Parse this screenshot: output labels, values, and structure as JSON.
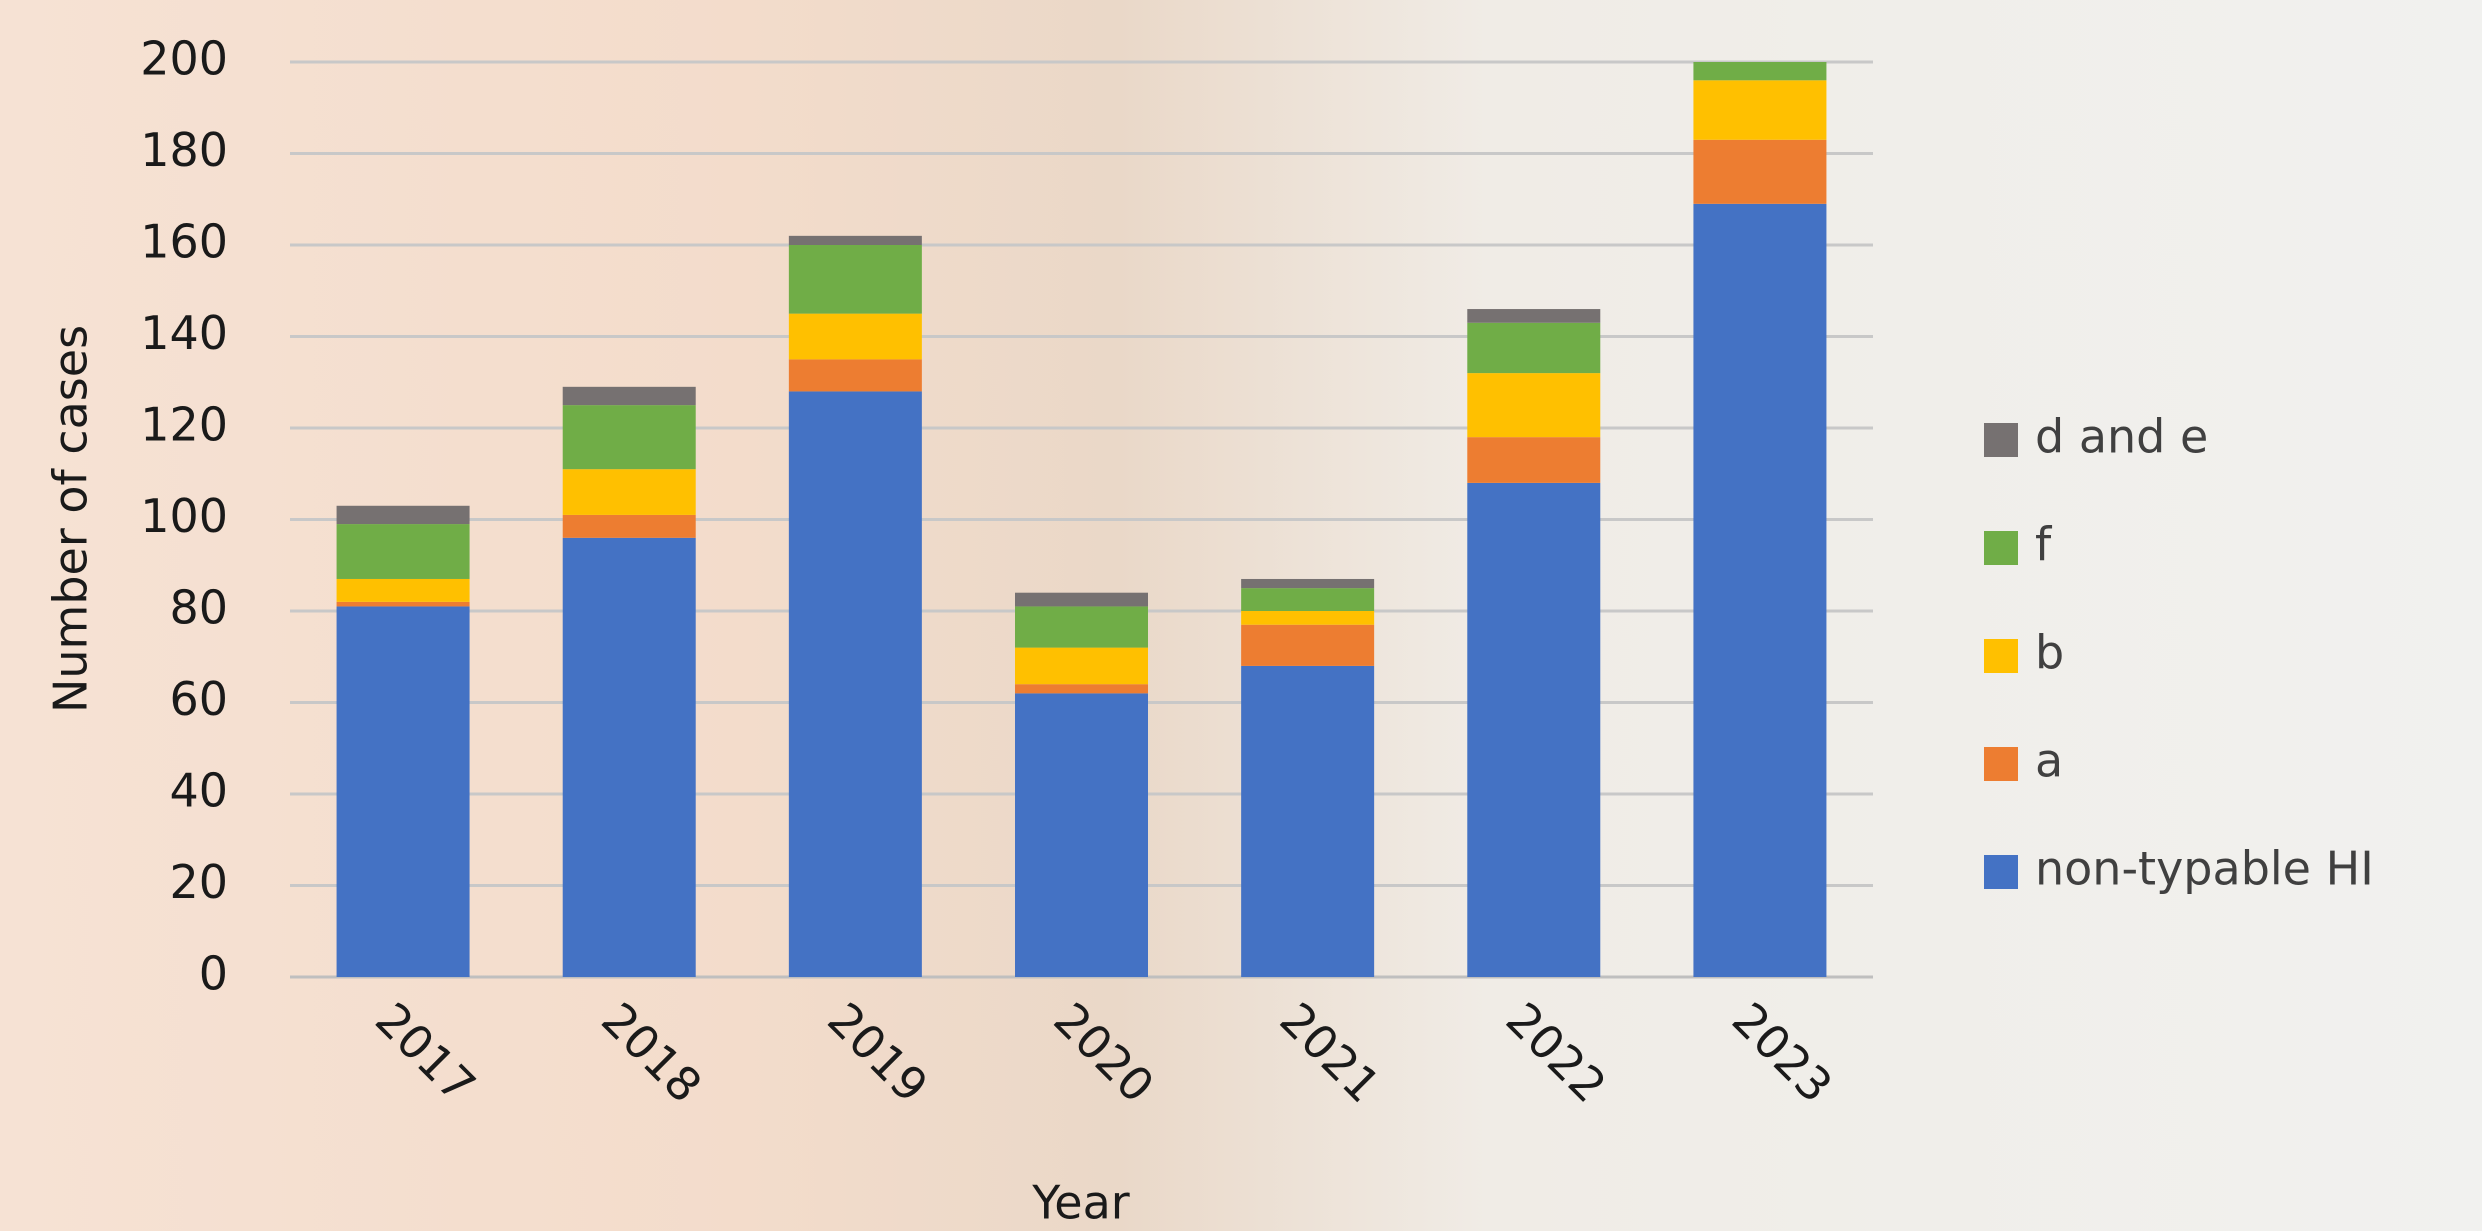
{
  "chart_data": {
    "type": "stacked_bar",
    "x_label": "Year",
    "y_label": "Number of cases",
    "categories": [
      "2017",
      "2018",
      "2019",
      "2020",
      "2021",
      "2022",
      "2023"
    ],
    "series": [
      {
        "name": "non-typable HI",
        "color": "#4472c4",
        "values": [
          81,
          96,
          128,
          62,
          68,
          108,
          169
        ]
      },
      {
        "name": "a",
        "color": "#ed7d31",
        "values": [
          1,
          5,
          7,
          2,
          9,
          10,
          14
        ]
      },
      {
        "name": "b",
        "color": "#ffc000",
        "values": [
          5,
          10,
          10,
          8,
          3,
          14,
          13
        ]
      },
      {
        "name": "f",
        "color": "#70ad47",
        "values": [
          12,
          14,
          15,
          9,
          5,
          11,
          4
        ]
      },
      {
        "name": "d and e",
        "color": "#767171",
        "values": [
          4,
          4,
          2,
          3,
          2,
          3,
          0
        ]
      }
    ],
    "ylim": [
      0,
      200
    ],
    "yticks": [
      0,
      20,
      40,
      60,
      80,
      100,
      120,
      140,
      160,
      180,
      200
    ],
    "grid": true,
    "legend": "right"
  }
}
